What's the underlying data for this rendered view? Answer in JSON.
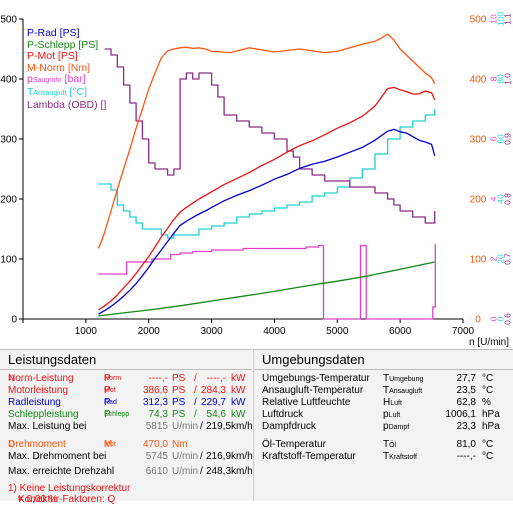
{
  "chart_data": {
    "type": "line",
    "xlabel": "n [U/min]",
    "x_ticks": [
      0,
      1000,
      2000,
      3000,
      4000,
      5000,
      6000,
      7000
    ],
    "xlim": [
      0,
      7000
    ],
    "left_axis": {
      "ticks": [
        0,
        100,
        200,
        300,
        400,
        500
      ],
      "ylim": [
        0,
        500
      ]
    },
    "right_axes": [
      {
        "ticks": [
          0,
          100,
          200,
          300,
          400,
          500
        ],
        "color": "#e8580c"
      },
      {
        "ticks": [
          0,
          2,
          4,
          6,
          8,
          10
        ],
        "color": "#e040c8"
      },
      {
        "ticks": [
          0,
          20,
          40,
          60,
          80,
          100
        ],
        "color": "#1fd0d0"
      },
      {
        "ticks": [
          "0.6",
          "0.7",
          "0.8",
          "0.9",
          "1.0",
          "1.1"
        ],
        "color": "#8a2a8a"
      }
    ],
    "grid": false,
    "legend_position": "top-left",
    "series": [
      {
        "name": "P-Rad [PS]",
        "color": "#0000cc",
        "x": [
          1200,
          1300,
          1400,
          1500,
          1600,
          1700,
          1800,
          1900,
          2000,
          2100,
          2200,
          2300,
          2400,
          2500,
          2600,
          2700,
          2800,
          2900,
          3000,
          3200,
          3400,
          3600,
          3800,
          4000,
          4200,
          4400,
          4600,
          4800,
          5000,
          5200,
          5400,
          5600,
          5800,
          5900,
          6000,
          6100,
          6200,
          6300,
          6400,
          6500,
          6550
        ],
        "y": [
          8,
          14,
          21,
          29,
          38,
          48,
          59,
          72,
          86,
          101,
          115,
          129,
          143,
          156,
          163,
          169,
          175,
          180,
          186,
          197,
          206,
          214,
          223,
          233,
          241,
          251,
          258,
          263,
          270,
          278,
          286,
          298,
          313,
          316,
          312,
          310,
          304,
          298,
          295,
          291,
          272
        ]
      },
      {
        "name": "P-Schlepp [PS]",
        "color": "#118811",
        "x": [
          1200,
          1500,
          2000,
          2500,
          3000,
          3500,
          4000,
          4500,
          5000,
          5500,
          6000,
          6550
        ],
        "y": [
          5,
          9,
          15,
          22,
          30,
          38,
          46,
          55,
          63,
          72,
          83,
          95
        ]
      },
      {
        "name": "P-Mot [PS]",
        "color": "#ee1111",
        "x": [
          1200,
          1300,
          1400,
          1500,
          1600,
          1700,
          1800,
          1900,
          2000,
          2100,
          2200,
          2300,
          2400,
          2500,
          2600,
          2700,
          2800,
          2900,
          3000,
          3200,
          3400,
          3600,
          3800,
          4000,
          4200,
          4400,
          4600,
          4800,
          5000,
          5200,
          5400,
          5600,
          5800,
          5900,
          6000,
          6100,
          6200,
          6300,
          6400,
          6500,
          6550
        ],
        "y": [
          15,
          22,
          30,
          40,
          52,
          63,
          76,
          90,
          104,
          120,
          137,
          151,
          166,
          178,
          186,
          193,
          200,
          206,
          212,
          224,
          234,
          244,
          256,
          266,
          278,
          289,
          297,
          307,
          318,
          327,
          338,
          355,
          384,
          386,
          382,
          379,
          375,
          375,
          380,
          377,
          365
        ]
      },
      {
        "name": "M-Norm [Nm]",
        "color": "#ff5511",
        "x": [
          1200,
          1250,
          1300,
          1400,
          1500,
          1600,
          1700,
          1800,
          1900,
          2000,
          2100,
          2200,
          2300,
          2400,
          2500,
          2600,
          2700,
          2800,
          2900,
          3000,
          3300,
          3600,
          4000,
          4400,
          4800,
          5000,
          5200,
          5400,
          5600,
          5700,
          5800,
          5900,
          6000,
          6100,
          6200,
          6300,
          6400,
          6500,
          6550
        ],
        "y": [
          118,
          130,
          145,
          180,
          216,
          250,
          283,
          318,
          350,
          383,
          410,
          435,
          447,
          450,
          452,
          453,
          451,
          452,
          450,
          446,
          444,
          452,
          445,
          450,
          444,
          446,
          452,
          458,
          463,
          468,
          475,
          465,
          450,
          440,
          430,
          420,
          410,
          402,
          392
        ]
      },
      {
        "name": "p Saugrohr [bar]",
        "color": "#e040c8",
        "x": [
          1200,
          1600,
          1650,
          2000,
          2050,
          2300,
          2350,
          2500,
          2700,
          3000,
          3500,
          4000,
          4500,
          4700,
          4760,
          4780,
          5350,
          5370,
          5440,
          5460,
          5480,
          5700,
          6500,
          6520,
          6560
        ],
        "y": [
          1.5,
          1.5,
          1.9,
          1.9,
          2.0,
          2.0,
          2.15,
          2.2,
          2.25,
          2.3,
          2.35,
          2.35,
          2.4,
          2.45,
          2.45,
          0.0,
          0.0,
          2.45,
          2.45,
          0.0,
          0.0,
          0.0,
          0.0,
          0.4,
          2.5
        ]
      },
      {
        "name": "T Ansaugluft [°C]",
        "color": "#1fd0d0",
        "x": [
          1200,
          1300,
          1400,
          1500,
          1600,
          1700,
          1800,
          1900,
          2000,
          2100,
          2200,
          2300,
          2400,
          2600,
          2800,
          3000,
          3200,
          3400,
          3600,
          3800,
          4000,
          4200,
          4400,
          4600,
          4800,
          5000,
          5200,
          5400,
          5600,
          5800,
          6000,
          6200,
          6400,
          6550
        ],
        "y": [
          45,
          45,
          43,
          38,
          36,
          34,
          32,
          30,
          30,
          30,
          28,
          27,
          28,
          28,
          30,
          31,
          32,
          34,
          35,
          36,
          37,
          38,
          39,
          41,
          42,
          44,
          47,
          50,
          55,
          60,
          64,
          66,
          68,
          70
        ]
      },
      {
        "name": "Lambda (OBD) []",
        "color": "#8a2a8a",
        "x": [
          1300,
          1400,
          1500,
          1600,
          1700,
          1800,
          1900,
          2000,
          2100,
          2200,
          2300,
          2400,
          2500,
          2600,
          2700,
          2800,
          2900,
          3000,
          3100,
          3200,
          3300,
          3400,
          3500,
          3600,
          3700,
          3800,
          3900,
          4000,
          4100,
          4200,
          4300,
          4400,
          4500,
          4600,
          4700,
          4800,
          4900,
          5000,
          5100,
          5200,
          5300,
          5400,
          5500,
          5600,
          5700,
          5800,
          5900,
          6000,
          6100,
          6200,
          6300,
          6400,
          6500,
          6550
        ],
        "y": [
          1.05,
          1.04,
          1.02,
          0.99,
          0.96,
          0.93,
          0.9,
          0.86,
          0.85,
          0.85,
          0.84,
          0.85,
          1.0,
          1.01,
          1.0,
          1.01,
          1.01,
          0.99,
          0.97,
          0.94,
          0.94,
          0.93,
          0.93,
          0.92,
          0.92,
          0.91,
          0.91,
          0.9,
          0.9,
          0.88,
          0.87,
          0.85,
          0.85,
          0.84,
          0.84,
          0.83,
          0.83,
          0.83,
          0.83,
          0.82,
          0.82,
          0.82,
          0.82,
          0.81,
          0.81,
          0.8,
          0.79,
          0.78,
          0.78,
          0.77,
          0.77,
          0.76,
          0.76,
          0.78
        ]
      }
    ]
  },
  "legend": {
    "p_rad": "P-Rad [PS]",
    "p_schlepp": "P-Schlepp [PS]",
    "p_mot": "P-Mot [PS]",
    "m_norm": "M-Norm [Nm]",
    "p_saug_main": "p",
    "p_saug_sub": "Saugrohr",
    "p_saug_unit": " [bar]",
    "t_ans_main": "T",
    "t_ans_sub": "Ansaugluft",
    "t_ans_unit": " [°C]",
    "lambda": "Lambda (OBD) []"
  },
  "left_panel": {
    "title": "Leistungsdaten",
    "norm": {
      "label": "Norm-Leistung",
      "ref": " 1)",
      "sym": "P",
      "sub": "Norm",
      "v1": "----,-",
      "u1": "PS",
      "v2": "----,-",
      "u2": "kW",
      "color": "#ee1111"
    },
    "motor": {
      "label": "Motorleistung",
      "sym": "P",
      "sub": "Mot",
      "v1": "386,6",
      "u1": "PS",
      "v2": "284,3",
      "u2": "kW",
      "color": "#ee1111"
    },
    "rad": {
      "label": "Radleistung",
      "sym": "P",
      "sub": "Rad",
      "v1": "312,3",
      "u1": "PS",
      "v2": "229,7",
      "u2": "kW",
      "color": "#0000cc"
    },
    "schlepp": {
      "label": "Schleppleistung",
      "sym": "P",
      "sub": "Schlepp",
      "v1": "74,3",
      "u1": "PS",
      "v2": "54,6",
      "u2": "kW",
      "color": "#118811"
    },
    "max_leistung": {
      "label": "Max. Leistung bei",
      "v1": "5815",
      "u1": "U/min",
      "v2": "219,5",
      "u2": "km/h"
    },
    "drehmoment": {
      "label": "Drehmoment",
      "ref": " 1)",
      "sym": "M",
      "sub": "Mot",
      "v1": "470,0",
      "u1": "Nm",
      "color": "#ff5511"
    },
    "max_drehmoment": {
      "label": "Max. Drehmoment bei",
      "v1": "5745",
      "u1": "U/min",
      "v2": "216,9",
      "u2": "km/h"
    },
    "max_drehzahl": {
      "label": "Max. erreichte Drehzahl",
      "v1": "6610",
      "u1": "U/min",
      "v2": "248,3",
      "u2": "km/h"
    },
    "footnote1": "1) Keine Leistungskorrektur",
    "footnote2_pre": "Korrektur-Faktoren: Q",
    "footnote2_sub": "V",
    "footnote2_post": " = 0,00 %",
    "sep1": "/",
    "sep2": "/"
  },
  "right_panel": {
    "title": "Umgebungsdaten",
    "rows": [
      {
        "label": "Umgebungs-Temperatur",
        "sym": "T",
        "sub": "Umgebung",
        "value": "27,7",
        "unit": "°C"
      },
      {
        "label": "Ansaugluft-Temperatur",
        "sym": "T",
        "sub": "Ansaugluft",
        "value": "23,5",
        "unit": "°C"
      },
      {
        "label": "Relative Luftfeuchte",
        "sym": "H",
        "sub": "Luft",
        "value": "62,8",
        "unit": "%"
      },
      {
        "label": "Luftdruck",
        "sym": "p",
        "sub": "Luft",
        "value": "1006,1",
        "unit": "hPa"
      },
      {
        "label": "Dampfdruck",
        "sym": "p",
        "sub": "Dampf",
        "value": "23,3",
        "unit": "hPa"
      },
      {
        "label": "Öl-Temperatur",
        "sym": "T",
        "sub": "Öl",
        "value": "81,0",
        "unit": "°C"
      },
      {
        "label": "Kraftstoff-Temperatur",
        "sym": "T",
        "sub": "Kraftstoff",
        "value": "----,-",
        "unit": "°C"
      }
    ]
  }
}
